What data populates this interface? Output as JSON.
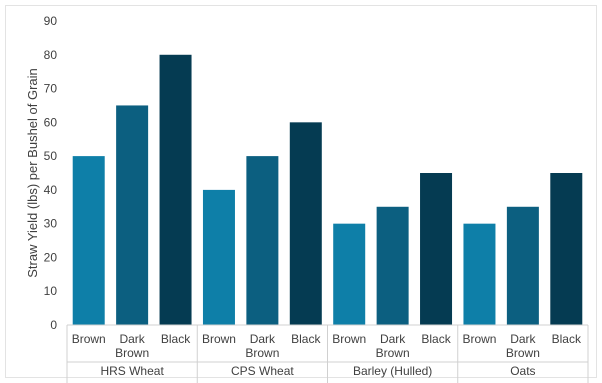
{
  "chart_data": {
    "type": "bar",
    "ylabel": "Straw Yield (lbs) per Bushel of Grain",
    "ylim": [
      0,
      90
    ],
    "yticks": [
      0,
      10,
      20,
      30,
      40,
      50,
      60,
      70,
      80,
      90
    ],
    "grid": false,
    "legend": "none",
    "colors": {
      "Brown": "#0e7fa8",
      "Dark Brown": "#0c5f80",
      "Black": "#053b52"
    },
    "groups": [
      {
        "name": "HRS Wheat",
        "categories": [
          "Brown",
          "Dark Brown",
          "Black"
        ],
        "values": [
          50,
          65,
          80
        ]
      },
      {
        "name": "CPS Wheat",
        "categories": [
          "Brown",
          "Dark Brown",
          "Black"
        ],
        "values": [
          40,
          50,
          60
        ]
      },
      {
        "name": "Barley (Hulled)",
        "categories": [
          "Brown",
          "Dark Brown",
          "Black"
        ],
        "values": [
          30,
          35,
          45
        ]
      },
      {
        "name": "Oats",
        "categories": [
          "Brown",
          "Dark Brown",
          "Black"
        ],
        "values": [
          30,
          35,
          45
        ]
      }
    ]
  }
}
